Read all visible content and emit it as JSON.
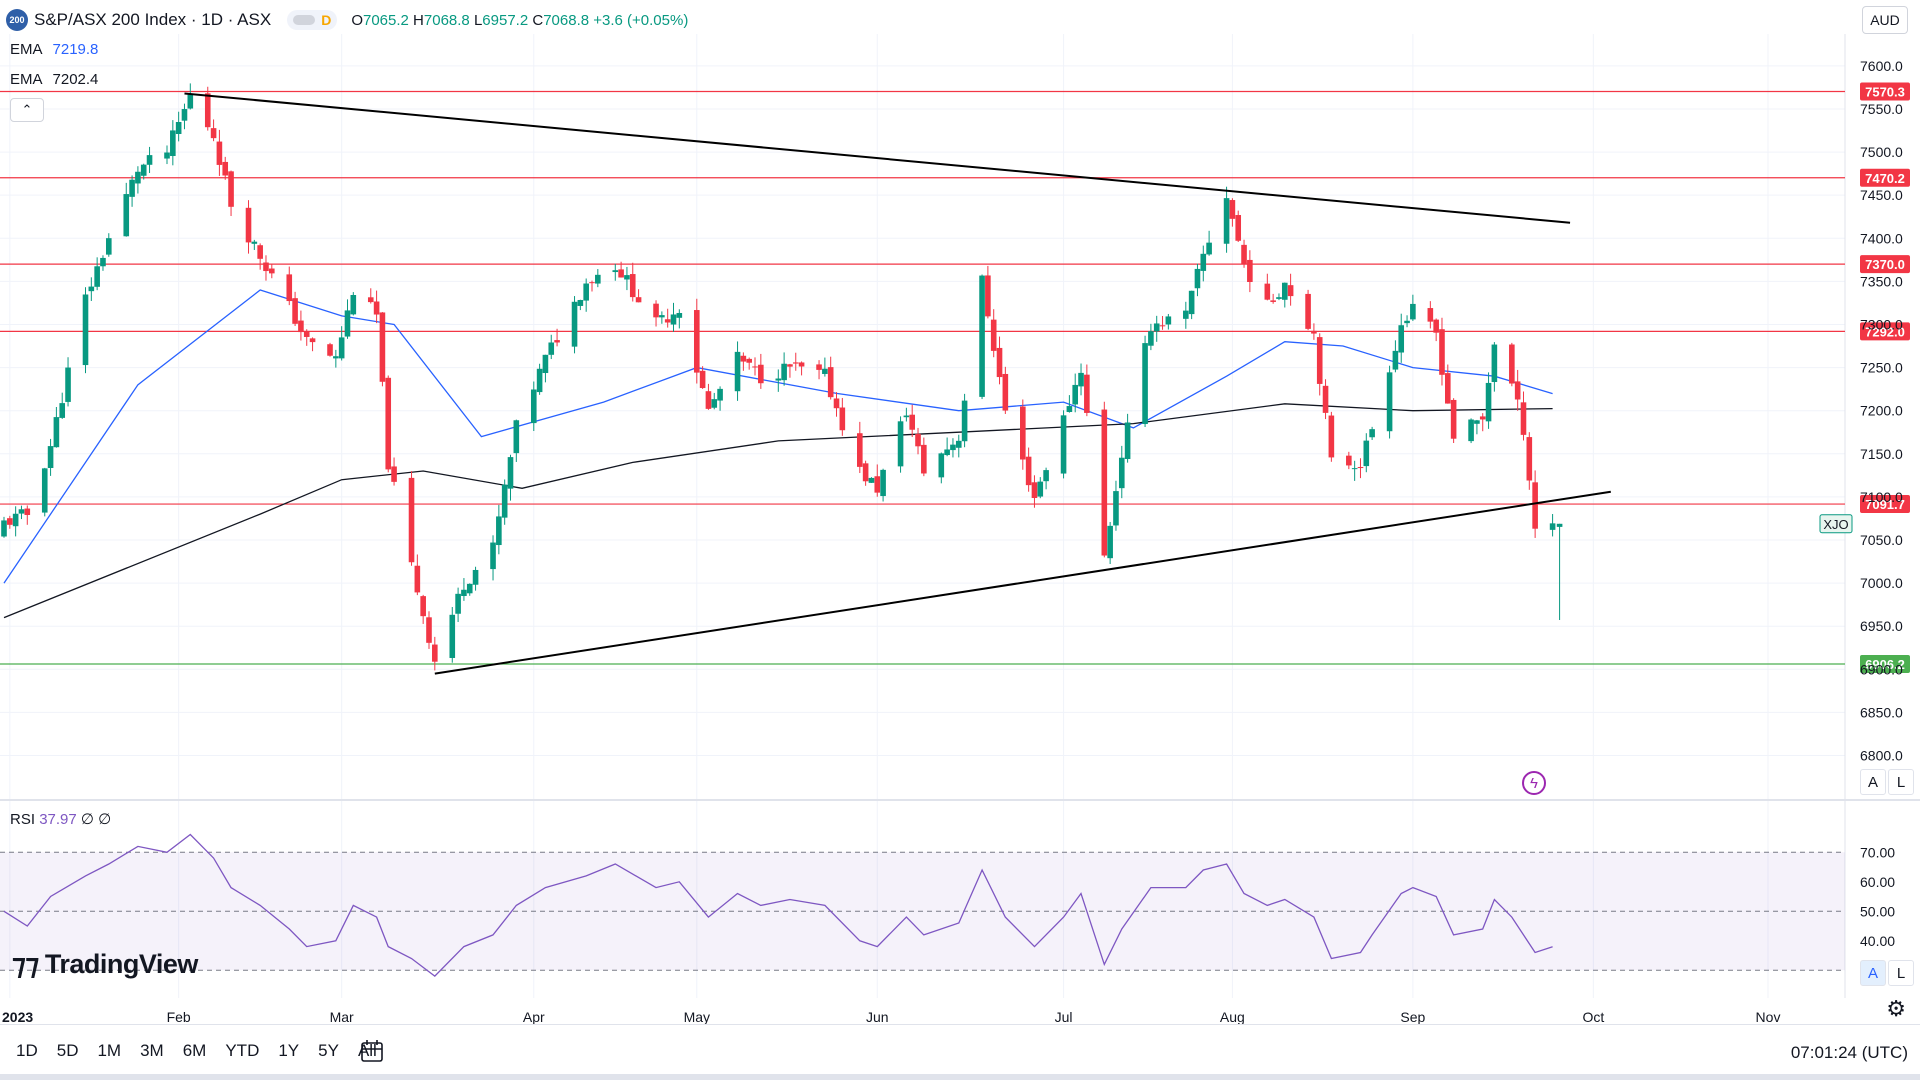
{
  "header": {
    "symbol_icon": "200",
    "title": "S&P/ASX 200 Index · 1D · ASX",
    "toggle_letter": "D",
    "open_label": "O",
    "open": "7065.2",
    "high_label": "H",
    "high": "7068.8",
    "low_label": "L",
    "low": "6957.2",
    "close_label": "C",
    "close": "7068.8",
    "change": "+3.6 (+0.05%)"
  },
  "indicators": [
    {
      "label": "EMA",
      "value": "7219.8",
      "color": "#2962ff"
    },
    {
      "label": "EMA",
      "value": "7202.4",
      "color": "#131722"
    }
  ],
  "currency": "AUD",
  "collapse_icon": "chevron-up-icon",
  "price_scale_labels": [
    "7600.0",
    "7550.0",
    "7500.0",
    "7450.0",
    "7400.0",
    "7350.0",
    "7300.0",
    "7250.0",
    "7200.0",
    "7150.0",
    "7100.0",
    "7050.0",
    "7000.0",
    "6950.0",
    "6900.0",
    "6850.0",
    "6800.0"
  ],
  "rsi": {
    "label": "RSI",
    "value": "37.97",
    "extra1": "∅",
    "extra2": "∅",
    "scale_labels": [
      "70.00",
      "60.00",
      "50.00",
      "40.00"
    ]
  },
  "scale_buttons": {
    "auto": "A",
    "log": "L"
  },
  "time_labels": [
    "2023",
    "Feb",
    "Mar",
    "Apr",
    "May",
    "Jun",
    "Jul",
    "Aug",
    "Sep",
    "Oct",
    "Nov"
  ],
  "brand": "TradingView",
  "ranges": [
    "1D",
    "5D",
    "1M",
    "3M",
    "6M",
    "YTD",
    "1Y",
    "5Y",
    "All"
  ],
  "clock": "07:01:24 (UTC)",
  "colors": {
    "up": "#089981",
    "down": "#f23645",
    "ema_fast": "#2962ff",
    "ema_slow": "#131722",
    "rsi": "#7e57c2",
    "level_red": "#f23645",
    "level_green": "#4caf50"
  },
  "chart_data": {
    "type": "candlestick",
    "title": "S&P/ASX 200 Index · 1D · ASX",
    "ylim": [
      6760,
      7630
    ],
    "horizontal_levels": [
      {
        "value": 7570.3,
        "label": "7570.3",
        "color": "#f23645"
      },
      {
        "value": 7470.2,
        "label": "7470.2",
        "color": "#f23645"
      },
      {
        "value": 7370.0,
        "label": "7370.0",
        "color": "#f23645"
      },
      {
        "value": 7292.0,
        "label": "7292.0",
        "color": "#f23645"
      },
      {
        "value": 7091.7,
        "label": "7091.7",
        "color": "#f23645"
      },
      {
        "value": 6906.2,
        "label": "6906.2",
        "color": "#4caf50"
      }
    ],
    "trendlines": [
      {
        "name": "upper",
        "from": [
          "2023-02-02",
          7568
        ],
        "to": [
          "2023-09-28",
          7418
        ]
      },
      {
        "name": "lower",
        "from": [
          "2023-03-17",
          6895
        ],
        "to": [
          "2023-10-05",
          7106
        ]
      }
    ],
    "last_price_tag": "XJO",
    "last_price": 7068.8,
    "month_ticks": [
      {
        "date": "2023-01-03",
        "label": "2023"
      },
      {
        "date": "2023-02-01",
        "label": "Feb"
      },
      {
        "date": "2023-03-01",
        "label": "Mar"
      },
      {
        "date": "2023-04-03",
        "label": "Apr"
      },
      {
        "date": "2023-05-01",
        "label": "May"
      },
      {
        "date": "2023-06-01",
        "label": "Jun"
      },
      {
        "date": "2023-07-03",
        "label": "Jul"
      },
      {
        "date": "2023-08-01",
        "label": "Aug"
      },
      {
        "date": "2023-09-01",
        "label": "Sep"
      },
      {
        "date": "2023-10-02",
        "label": "Oct"
      },
      {
        "date": "2023-11-01",
        "label": "Nov"
      }
    ],
    "close_path": [
      [
        "2023-01-02",
        7070
      ],
      [
        "2023-01-06",
        7080
      ],
      [
        "2023-01-10",
        7160
      ],
      [
        "2023-01-16",
        7330
      ],
      [
        "2023-01-20",
        7400
      ],
      [
        "2023-01-25",
        7480
      ],
      [
        "2023-01-30",
        7500
      ],
      [
        "2023-02-03",
        7565
      ],
      [
        "2023-02-07",
        7520
      ],
      [
        "2023-02-10",
        7440
      ],
      [
        "2023-02-15",
        7380
      ],
      [
        "2023-02-20",
        7320
      ],
      [
        "2023-02-23",
        7280
      ],
      [
        "2023-02-28",
        7260
      ],
      [
        "2023-03-03",
        7340
      ],
      [
        "2023-03-07",
        7310
      ],
      [
        "2023-03-09",
        7140
      ],
      [
        "2023-03-13",
        7020
      ],
      [
        "2023-03-17",
        6910
      ],
      [
        "2023-03-22",
        7000
      ],
      [
        "2023-03-27",
        7040
      ],
      [
        "2023-03-31",
        7180
      ],
      [
        "2023-04-05",
        7260
      ],
      [
        "2023-04-12",
        7350
      ],
      [
        "2023-04-17",
        7370
      ],
      [
        "2023-04-24",
        7300
      ],
      [
        "2023-04-28",
        7320
      ],
      [
        "2023-05-03",
        7200
      ],
      [
        "2023-05-08",
        7260
      ],
      [
        "2023-05-12",
        7240
      ],
      [
        "2023-05-17",
        7250
      ],
      [
        "2023-05-23",
        7240
      ],
      [
        "2023-05-29",
        7130
      ],
      [
        "2023-06-01",
        7110
      ],
      [
        "2023-06-06",
        7200
      ],
      [
        "2023-06-09",
        7130
      ],
      [
        "2023-06-15",
        7170
      ],
      [
        "2023-06-19",
        7350
      ],
      [
        "2023-06-23",
        7200
      ],
      [
        "2023-06-28",
        7100
      ],
      [
        "2023-07-03",
        7190
      ],
      [
        "2023-07-06",
        7250
      ],
      [
        "2023-07-10",
        7030
      ],
      [
        "2023-07-13",
        7150
      ],
      [
        "2023-07-18",
        7300
      ],
      [
        "2023-07-24",
        7310
      ],
      [
        "2023-07-27",
        7380
      ],
      [
        "2023-07-31",
        7450
      ],
      [
        "2023-08-03",
        7370
      ],
      [
        "2023-08-07",
        7320
      ],
      [
        "2023-08-10",
        7350
      ],
      [
        "2023-08-15",
        7290
      ],
      [
        "2023-08-18",
        7140
      ],
      [
        "2023-08-23",
        7140
      ],
      [
        "2023-08-25",
        7180
      ],
      [
        "2023-08-30",
        7300
      ],
      [
        "2023-09-01",
        7315
      ],
      [
        "2023-09-05",
        7290
      ],
      [
        "2023-09-08",
        7170
      ],
      [
        "2023-09-13",
        7190
      ],
      [
        "2023-09-15",
        7280
      ],
      [
        "2023-09-18",
        7230
      ],
      [
        "2023-09-20",
        7180
      ],
      [
        "2023-09-22",
        7065
      ],
      [
        "2023-09-25",
        7068.8
      ]
    ],
    "series": [
      {
        "name": "EMA",
        "value": 7219.8,
        "path": [
          [
            "2023-01-02",
            7000
          ],
          [
            "2023-01-25",
            7230
          ],
          [
            "2023-02-15",
            7340
          ],
          [
            "2023-03-01",
            7310
          ],
          [
            "2023-03-10",
            7300
          ],
          [
            "2023-03-25",
            7170
          ],
          [
            "2023-04-15",
            7210
          ],
          [
            "2023-05-01",
            7250
          ],
          [
            "2023-05-25",
            7220
          ],
          [
            "2023-06-15",
            7200
          ],
          [
            "2023-07-03",
            7210
          ],
          [
            "2023-07-15",
            7180
          ],
          [
            "2023-07-31",
            7240
          ],
          [
            "2023-08-10",
            7280
          ],
          [
            "2023-08-20",
            7275
          ],
          [
            "2023-09-01",
            7250
          ],
          [
            "2023-09-15",
            7240
          ],
          [
            "2023-09-25",
            7219.8
          ]
        ]
      },
      {
        "name": "EMA",
        "value": 7202.4,
        "path": [
          [
            "2023-01-02",
            6960
          ],
          [
            "2023-02-15",
            7080
          ],
          [
            "2023-03-01",
            7120
          ],
          [
            "2023-03-15",
            7130
          ],
          [
            "2023-04-01",
            7110
          ],
          [
            "2023-04-20",
            7140
          ],
          [
            "2023-05-15",
            7165
          ],
          [
            "2023-06-15",
            7175
          ],
          [
            "2023-07-15",
            7185
          ],
          [
            "2023-08-10",
            7208
          ],
          [
            "2023-09-01",
            7200
          ],
          [
            "2023-09-25",
            7202.4
          ]
        ]
      }
    ],
    "rsi_series": {
      "name": "RSI",
      "value": 37.97,
      "bands": [
        70,
        50,
        30
      ],
      "path": [
        [
          "2023-01-02",
          50
        ],
        [
          "2023-01-06",
          45
        ],
        [
          "2023-01-10",
          55
        ],
        [
          "2023-01-16",
          62
        ],
        [
          "2023-01-20",
          66
        ],
        [
          "2023-01-25",
          72
        ],
        [
          "2023-01-30",
          70
        ],
        [
          "2023-02-03",
          76
        ],
        [
          "2023-02-07",
          68
        ],
        [
          "2023-02-10",
          58
        ],
        [
          "2023-02-15",
          52
        ],
        [
          "2023-02-20",
          44
        ],
        [
          "2023-02-23",
          38
        ],
        [
          "2023-02-28",
          40
        ],
        [
          "2023-03-03",
          52
        ],
        [
          "2023-03-07",
          48
        ],
        [
          "2023-03-09",
          38
        ],
        [
          "2023-03-13",
          34
        ],
        [
          "2023-03-17",
          28
        ],
        [
          "2023-03-22",
          38
        ],
        [
          "2023-03-27",
          42
        ],
        [
          "2023-03-31",
          52
        ],
        [
          "2023-04-05",
          58
        ],
        [
          "2023-04-12",
          62
        ],
        [
          "2023-04-17",
          66
        ],
        [
          "2023-04-24",
          58
        ],
        [
          "2023-04-28",
          60
        ],
        [
          "2023-05-03",
          48
        ],
        [
          "2023-05-08",
          56
        ],
        [
          "2023-05-12",
          52
        ],
        [
          "2023-05-17",
          54
        ],
        [
          "2023-05-23",
          52
        ],
        [
          "2023-05-29",
          40
        ],
        [
          "2023-06-01",
          38
        ],
        [
          "2023-06-06",
          48
        ],
        [
          "2023-06-09",
          42
        ],
        [
          "2023-06-15",
          46
        ],
        [
          "2023-06-19",
          64
        ],
        [
          "2023-06-23",
          48
        ],
        [
          "2023-06-28",
          38
        ],
        [
          "2023-07-03",
          48
        ],
        [
          "2023-07-06",
          56
        ],
        [
          "2023-07-10",
          32
        ],
        [
          "2023-07-13",
          44
        ],
        [
          "2023-07-18",
          58
        ],
        [
          "2023-07-24",
          58
        ],
        [
          "2023-07-27",
          64
        ],
        [
          "2023-07-31",
          66
        ],
        [
          "2023-08-03",
          56
        ],
        [
          "2023-08-07",
          52
        ],
        [
          "2023-08-10",
          54
        ],
        [
          "2023-08-15",
          48
        ],
        [
          "2023-08-18",
          34
        ],
        [
          "2023-08-23",
          36
        ],
        [
          "2023-08-25",
          42
        ],
        [
          "2023-08-30",
          56
        ],
        [
          "2023-09-01",
          58
        ],
        [
          "2023-09-05",
          55
        ],
        [
          "2023-09-08",
          42
        ],
        [
          "2023-09-13",
          44
        ],
        [
          "2023-09-15",
          54
        ],
        [
          "2023-09-18",
          48
        ],
        [
          "2023-09-20",
          42
        ],
        [
          "2023-09-22",
          36
        ],
        [
          "2023-09-25",
          37.97
        ]
      ]
    }
  }
}
